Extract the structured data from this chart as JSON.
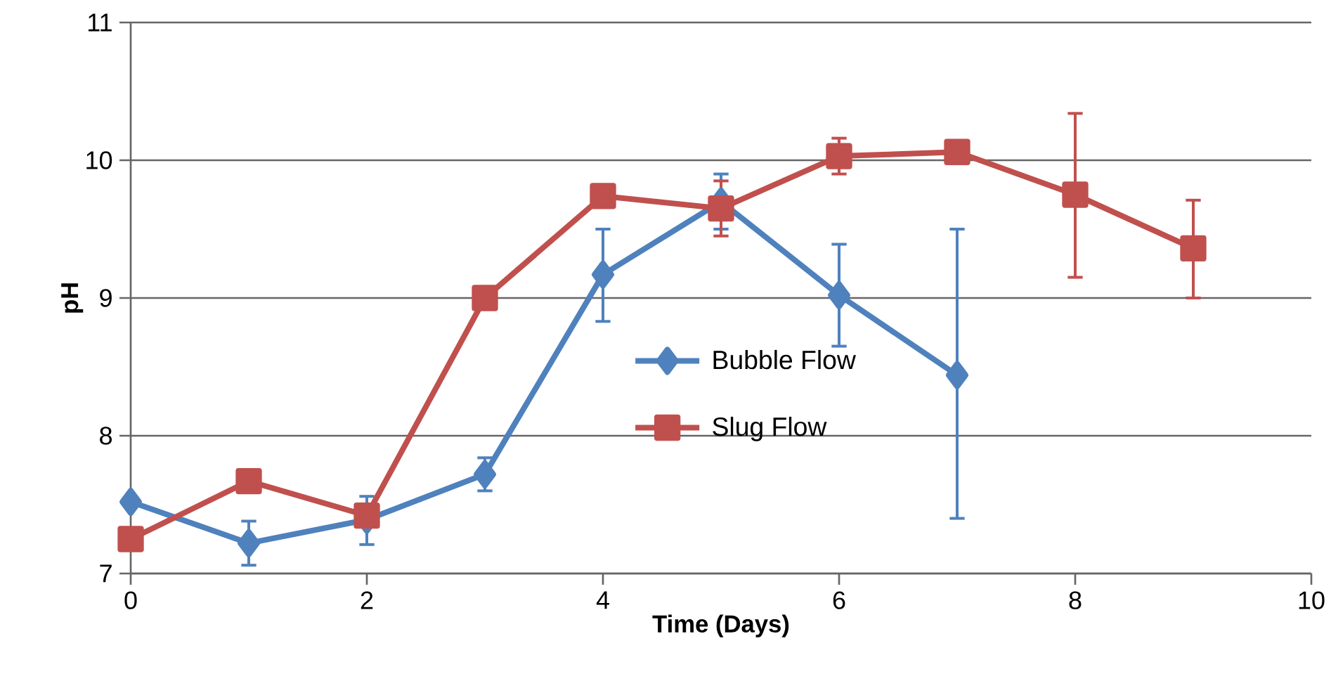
{
  "chart_data": {
    "type": "line",
    "xlabel": "Time (Days)",
    "ylabel": "pH",
    "xlim": [
      0,
      10
    ],
    "xticks": [
      0,
      2,
      4,
      6,
      8,
      10
    ],
    "ylim": [
      7,
      11
    ],
    "yticks": [
      7,
      8,
      9,
      10,
      11
    ],
    "grid": "y",
    "legend": "center",
    "series": [
      {
        "name": "Bubble Flow",
        "color": "#4f81bd",
        "marker": "diamond",
        "x": [
          0,
          1,
          2,
          3,
          4,
          5,
          6,
          7
        ],
        "values": [
          7.52,
          7.22,
          7.39,
          7.72,
          9.17,
          9.7,
          9.02,
          8.44
        ],
        "errors": [
          null,
          [
            7.06,
            7.38
          ],
          [
            7.21,
            7.56
          ],
          [
            7.6,
            7.84
          ],
          [
            8.83,
            9.5
          ],
          [
            9.5,
            9.9
          ],
          [
            8.65,
            9.39
          ],
          [
            7.4,
            9.5
          ]
        ]
      },
      {
        "name": "Slug Flow",
        "color": "#c0504d",
        "marker": "square",
        "x": [
          0,
          1,
          2,
          3,
          4,
          5,
          6,
          7,
          8,
          9
        ],
        "values": [
          7.25,
          7.67,
          7.42,
          9.0,
          9.74,
          9.65,
          10.03,
          10.06,
          9.75,
          9.36
        ],
        "errors": [
          null,
          null,
          null,
          null,
          null,
          [
            9.45,
            9.85
          ],
          [
            9.9,
            10.16
          ],
          null,
          [
            9.15,
            10.34
          ],
          [
            9.0,
            9.71
          ]
        ]
      }
    ]
  }
}
